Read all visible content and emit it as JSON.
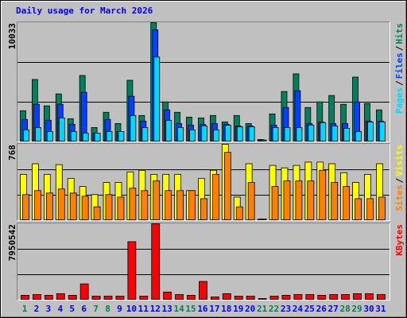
{
  "chart_data": [
    {
      "type": "bar",
      "title": "Daily usage for March 2026",
      "title_color": "#0000ff",
      "ylim": [
        0,
        10033
      ],
      "yticks": [
        10033
      ],
      "grid_divisions": 3,
      "legend_separator": "/",
      "series": [
        {
          "name": "Pages",
          "color": "#00d8ff",
          "values": [
            887,
            1092,
            751,
            1911,
            751,
            614,
            614,
            751,
            751,
            2116,
            1092,
            7098,
            1706,
            1092,
            887,
            1229,
            887,
            1297,
            1160,
            1160,
            20,
            1092,
            1092,
            1092,
            1297,
            1502,
            1229,
            1024,
            751,
            1570,
            1570
          ]
        },
        {
          "name": "Files",
          "color": "#0040ff",
          "values": [
            1775,
            3071,
            1706,
            3071,
            1365,
            4095,
            614,
            1775,
            751,
            3754,
            1638,
            9419,
            2594,
            1433,
            1297,
            1365,
            1433,
            1365,
            1229,
            1229,
            34,
            1297,
            2798,
            4232,
            1433,
            1570,
            1433,
            1433,
            3276,
            1638,
            1638
          ]
        },
        {
          "name": "Hits",
          "color": "#00805c",
          "values": [
            2525,
            5187,
            2935,
            3959,
            1843,
            5528,
            1092,
            2389,
            1433,
            5119,
            2116,
            10033,
            3276,
            2389,
            1979,
            1911,
            2116,
            1570,
            2116,
            1433,
            68,
            2252,
            4163,
            5665,
            2798,
            3276,
            3822,
            3071,
            5392,
            3140,
            2594
          ]
        }
      ]
    },
    {
      "type": "bar",
      "ylim": [
        0,
        768
      ],
      "yticks": [
        768
      ],
      "grid_divisions": 3,
      "legend_separator": "/",
      "series": [
        {
          "name": "Sites",
          "color": "#ff8000",
          "values": [
            251,
            292,
            267,
            309,
            267,
            234,
            125,
            251,
            225,
            317,
            292,
            392,
            292,
            292,
            292,
            209,
            459,
            685,
            125,
            376,
            0,
            334,
            392,
            392,
            392,
            501,
            376,
            334,
            209,
            209,
            225
          ]
        },
        {
          "name": "Visits",
          "color": "#ffff00",
          "values": [
            459,
            568,
            459,
            559,
            418,
            334,
            251,
            376,
            376,
            484,
            501,
            459,
            459,
            459,
            292,
            418,
            501,
            768,
            225,
            568,
            0,
            551,
            526,
            551,
            585,
            585,
            568,
            476,
            376,
            459,
            568
          ]
        }
      ]
    },
    {
      "type": "bar",
      "ylim": [
        0,
        7950542
      ],
      "yticks": [
        7950542
      ],
      "grid_divisions": 3,
      "categories": [
        "1",
        "2",
        "3",
        "4",
        "5",
        "6",
        "7",
        "8",
        "9",
        "10",
        "11",
        "12",
        "13",
        "14",
        "15",
        "16",
        "17",
        "18",
        "19",
        "20",
        "21",
        "22",
        "23",
        "24",
        "25",
        "26",
        "27",
        "28",
        "29",
        "30",
        "31"
      ],
      "category_colors": [
        "#00805c",
        "#0000ff",
        "#0000ff",
        "#0000ff",
        "#0000ff",
        "#0000ff",
        "#00805c",
        "#00805c",
        "#0000ff",
        "#0000ff",
        "#0000ff",
        "#0000ff",
        "#0000ff",
        "#00805c",
        "#00805c",
        "#0000ff",
        "#0000ff",
        "#0000ff",
        "#0000ff",
        "#0000ff",
        "#00805c",
        "#00805c",
        "#0000ff",
        "#0000ff",
        "#0000ff",
        "#0000ff",
        "#0000ff",
        "#00805c",
        "#00805c",
        "#0000ff",
        "#0000ff"
      ],
      "series": [
        {
          "name": "KBytes",
          "color": "#ff0000",
          "values": [
            345676,
            432095,
            345676,
            518514,
            345676,
            1555542,
            259257,
            259257,
            259257,
            6049330,
            259257,
            7950542,
            691352,
            432095,
            345676,
            1814799,
            172838,
            518514,
            259257,
            259257,
            0,
            259257,
            345676,
            432095,
            432095,
            345676,
            432095,
            432095,
            518514,
            518514,
            432095
          ]
        }
      ]
    }
  ]
}
